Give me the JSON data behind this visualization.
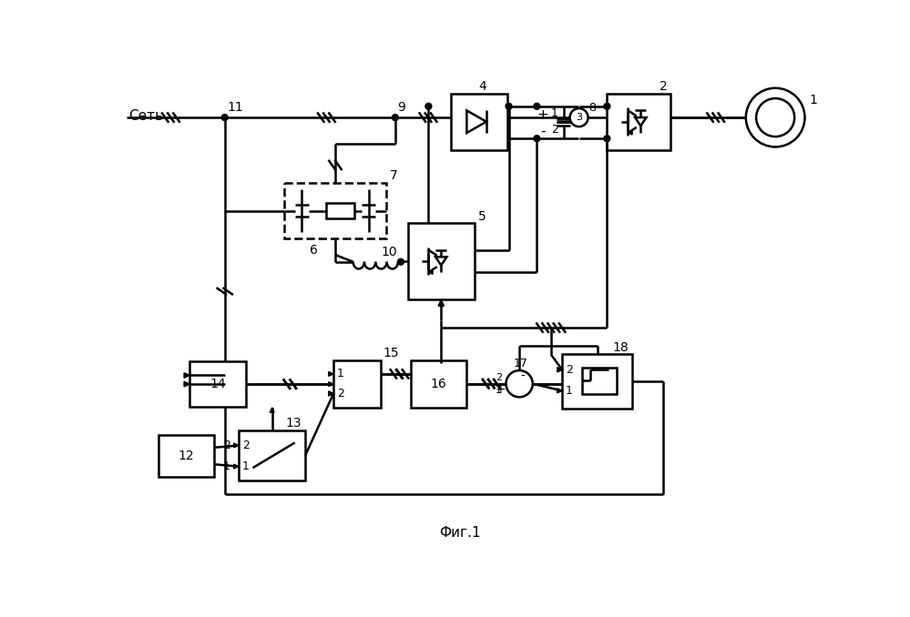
{
  "title": "Фиг.1",
  "bg": "#ffffff",
  "lc": "#000000",
  "lw": 1.8
}
